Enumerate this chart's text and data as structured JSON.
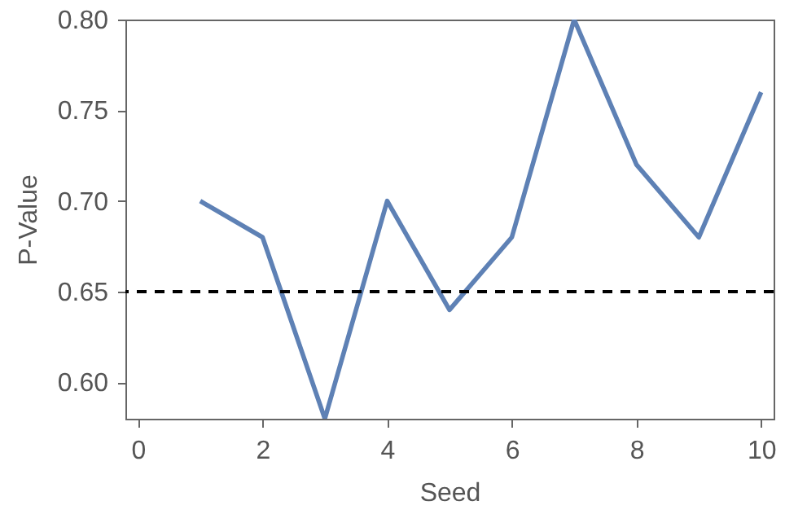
{
  "chart_data": {
    "type": "line",
    "xlabel": "Seed",
    "ylabel": "P-Value",
    "x": [
      1,
      2,
      3,
      4,
      5,
      6,
      7,
      8,
      9,
      10
    ],
    "series": [
      {
        "color": "#5e81b5",
        "values": [
          0.7,
          0.68,
          0.58,
          0.7,
          0.64,
          0.68,
          0.8,
          0.72,
          0.68,
          0.76
        ]
      }
    ],
    "xlim": [
      -0.2,
      10.2
    ],
    "xticks": [
      0,
      2,
      4,
      6,
      8,
      10
    ],
    "ylim": [
      0.58,
      0.8
    ],
    "yticks": [
      {
        "value": 0.6,
        "label": "0.60"
      },
      {
        "value": 0.65,
        "label": "0.65"
      },
      {
        "value": 0.7,
        "label": "0.70"
      },
      {
        "value": 0.75,
        "label": "0.75"
      },
      {
        "value": 0.8,
        "label": "0.80"
      }
    ],
    "ref_lines": [
      {
        "axis": "y",
        "value": 0.65,
        "color": "#000000",
        "line_style": "dashed"
      }
    ],
    "grid": false,
    "marker": "none",
    "line_style": "solid"
  }
}
